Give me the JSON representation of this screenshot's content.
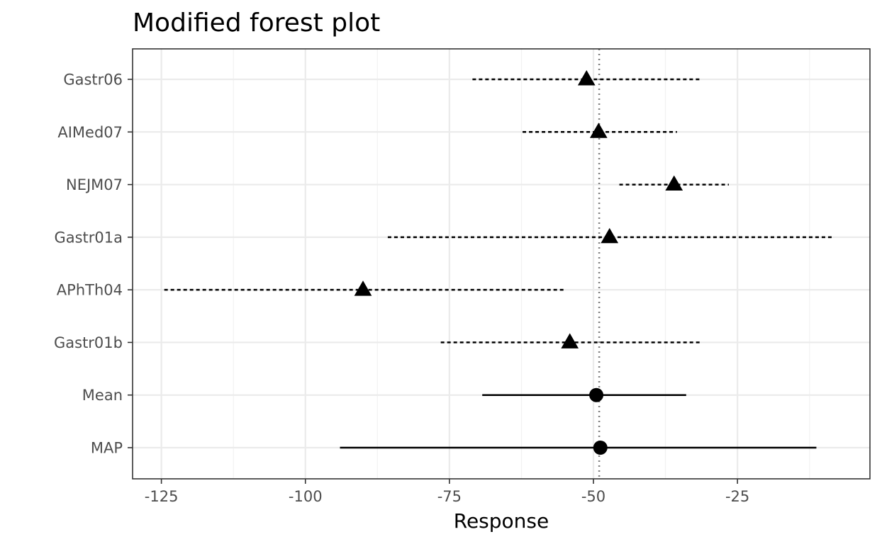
{
  "chart_data": {
    "type": "scatter",
    "subtype": "forest-plot",
    "title": "Modified forest plot",
    "xlabel": "Response",
    "ylabel": "",
    "xlim": [
      -130,
      -2
    ],
    "xticks": [
      -125,
      -100,
      -75,
      -50,
      -25
    ],
    "xtick_labels": [
      "-125",
      "-100",
      "-75",
      "-50",
      "-25"
    ],
    "reference_line": -49,
    "grid": true,
    "legend": "none",
    "categories": [
      "Gastr06",
      "AIMed07",
      "NEJM07",
      "Gastr01a",
      "APhTh04",
      "Gastr01b",
      "Mean",
      "MAP"
    ],
    "rows": [
      {
        "label": "Gastr06",
        "estimate": -51.2,
        "lower": -71,
        "upper": -31.2,
        "marker": "triangle",
        "line": "dashed"
      },
      {
        "label": "AIMed07",
        "estimate": -49.1,
        "lower": -62.3,
        "upper": -35.5,
        "marker": "triangle",
        "line": "dashed"
      },
      {
        "label": "NEJM07",
        "estimate": -36,
        "lower": -45.5,
        "upper": -26.5,
        "marker": "triangle",
        "line": "dashed"
      },
      {
        "label": "Gastr01a",
        "estimate": -47.2,
        "lower": -85.7,
        "upper": -8.6,
        "marker": "triangle",
        "line": "dashed"
      },
      {
        "label": "APhTh04",
        "estimate": -90,
        "lower": -124.5,
        "upper": -55.2,
        "marker": "triangle",
        "line": "dashed"
      },
      {
        "label": "Gastr01b",
        "estimate": -54.1,
        "lower": -76.5,
        "upper": -31.2,
        "marker": "triangle",
        "line": "dashed"
      },
      {
        "label": "Mean",
        "estimate": -49.5,
        "lower": -69.3,
        "upper": -33.9,
        "marker": "circle",
        "line": "solid"
      },
      {
        "label": "MAP",
        "estimate": -48.8,
        "lower": -94,
        "upper": -11.3,
        "marker": "circle",
        "line": "solid"
      }
    ],
    "colors": {
      "marks": "#000000",
      "grid_major": "#ebebeb",
      "grid_minor": "#f2f2f2",
      "panel_border": "#333333",
      "reference_line": "#7f7f7f"
    }
  }
}
